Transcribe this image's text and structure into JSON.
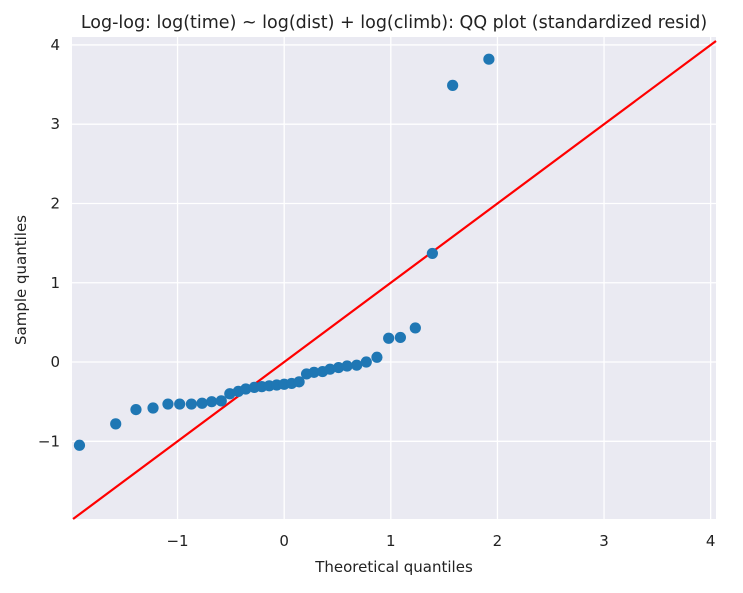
{
  "chart_data": {
    "type": "scatter",
    "title": "Log-log: log(time) ~ log(dist) + log(climb): QQ plot (standardized resid)",
    "xlabel": "Theoretical quantiles",
    "ylabel": "Sample quantiles",
    "xlim": [
      -1.99,
      4.05
    ],
    "ylim": [
      -1.98,
      4.1
    ],
    "xticks": [
      -1,
      0,
      1,
      2,
      3,
      4
    ],
    "xtick_labels": [
      "−1",
      "0",
      "1",
      "2",
      "3",
      "4"
    ],
    "yticks": [
      -1,
      0,
      1,
      2,
      3,
      4
    ],
    "ytick_labels": [
      "−1",
      "0",
      "1",
      "2",
      "3",
      "4"
    ],
    "grid": true,
    "background": "#eaeaf2",
    "point_color": "#1f77b4",
    "line_color": "#ff0000",
    "reference_line": {
      "slope": 1,
      "intercept": 0
    },
    "points": [
      [
        -1.92,
        -1.05
      ],
      [
        -1.58,
        -0.78
      ],
      [
        -1.39,
        -0.6
      ],
      [
        -1.23,
        -0.58
      ],
      [
        -1.09,
        -0.53
      ],
      [
        -0.98,
        -0.53
      ],
      [
        -0.87,
        -0.53
      ],
      [
        -0.77,
        -0.52
      ],
      [
        -0.68,
        -0.5
      ],
      [
        -0.59,
        -0.49
      ],
      [
        -0.51,
        -0.4
      ],
      [
        -0.43,
        -0.37
      ],
      [
        -0.36,
        -0.34
      ],
      [
        -0.28,
        -0.32
      ],
      [
        -0.21,
        -0.31
      ],
      [
        -0.14,
        -0.3
      ],
      [
        -0.07,
        -0.29
      ],
      [
        0.0,
        -0.28
      ],
      [
        0.07,
        -0.27
      ],
      [
        0.14,
        -0.25
      ],
      [
        0.21,
        -0.15
      ],
      [
        0.28,
        -0.13
      ],
      [
        0.36,
        -0.12
      ],
      [
        0.43,
        -0.09
      ],
      [
        0.51,
        -0.07
      ],
      [
        0.59,
        -0.05
      ],
      [
        0.68,
        -0.04
      ],
      [
        0.77,
        0.0
      ],
      [
        0.87,
        0.06
      ],
      [
        0.98,
        0.3
      ],
      [
        1.09,
        0.31
      ],
      [
        1.23,
        0.43
      ],
      [
        1.39,
        1.37
      ],
      [
        1.58,
        3.49
      ],
      [
        1.92,
        3.82
      ]
    ]
  }
}
